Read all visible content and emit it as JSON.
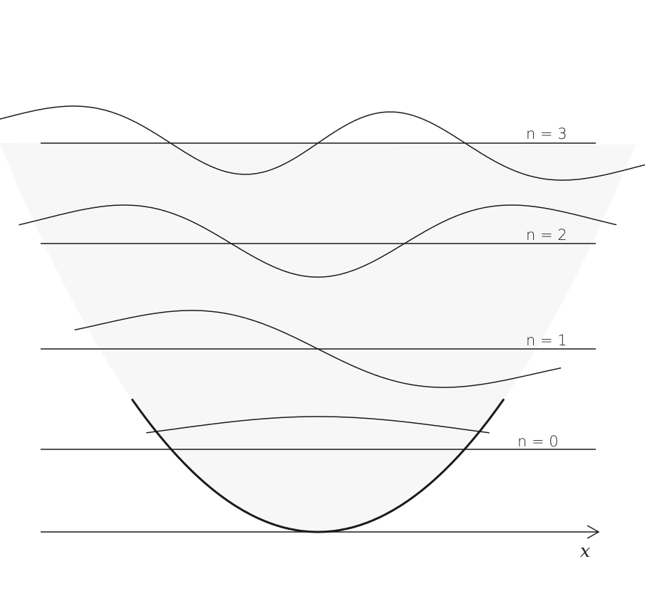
{
  "diagram": {
    "axis_label": "x",
    "levels": [
      {
        "label": "n = 0",
        "n": 0
      },
      {
        "label": "n = 1",
        "n": 1
      },
      {
        "label": "n = 2",
        "n": 2
      },
      {
        "label": "n = 3",
        "n": 3
      }
    ]
  }
}
